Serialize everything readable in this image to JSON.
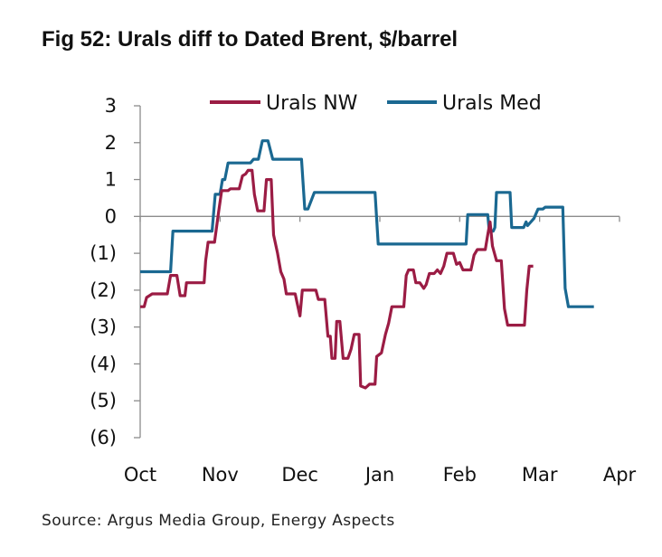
{
  "title": "Fig 52: Urals diff to Dated Brent, $/barrel",
  "source": "Source: Argus Media Group, Energy Aspects",
  "chart_data": {
    "type": "line",
    "title": "Fig 52: Urals diff to Dated Brent, $/barrel",
    "xlabel": "",
    "ylabel": "",
    "x_ticks": [
      "Oct",
      "Nov",
      "Dec",
      "Jan",
      "Feb",
      "Mar",
      "Apr"
    ],
    "y_ticks": [
      3,
      2,
      1,
      0,
      -1,
      -2,
      -3,
      -4,
      -5,
      -6
    ],
    "y_tick_labels": [
      "3",
      "2",
      "1",
      "0",
      "(1)",
      "(2)",
      "(3)",
      "(4)",
      "(5)",
      "(6)"
    ],
    "xlim": [
      0,
      6
    ],
    "ylim": [
      -6,
      3
    ],
    "grid": false,
    "legend_position": "top",
    "series": [
      {
        "name": "Urals NW",
        "color": "#9b1c44",
        "points": [
          [
            0.0,
            -2.45
          ],
          [
            0.05,
            -2.45
          ],
          [
            0.08,
            -2.2
          ],
          [
            0.15,
            -2.1
          ],
          [
            0.34,
            -2.1
          ],
          [
            0.38,
            -1.6
          ],
          [
            0.46,
            -1.6
          ],
          [
            0.5,
            -2.15
          ],
          [
            0.56,
            -2.15
          ],
          [
            0.58,
            -1.8
          ],
          [
            0.8,
            -1.8
          ],
          [
            0.82,
            -1.2
          ],
          [
            0.85,
            -0.7
          ],
          [
            0.93,
            -0.7
          ],
          [
            0.98,
            0.1
          ],
          [
            1.02,
            0.7
          ],
          [
            1.1,
            0.7
          ],
          [
            1.13,
            0.75
          ],
          [
            1.24,
            0.75
          ],
          [
            1.28,
            1.1
          ],
          [
            1.32,
            1.15
          ],
          [
            1.35,
            1.25
          ],
          [
            1.4,
            1.25
          ],
          [
            1.43,
            0.6
          ],
          [
            1.47,
            0.15
          ],
          [
            1.55,
            0.15
          ],
          [
            1.58,
            1.0
          ],
          [
            1.64,
            1.0
          ],
          [
            1.67,
            -0.5
          ],
          [
            1.72,
            -1.0
          ],
          [
            1.76,
            -1.5
          ],
          [
            1.8,
            -1.7
          ],
          [
            1.83,
            -2.1
          ],
          [
            1.94,
            -2.1
          ],
          [
            1.97,
            -2.4
          ],
          [
            2.0,
            -2.7
          ],
          [
            2.03,
            -2.0
          ],
          [
            2.2,
            -2.0
          ],
          [
            2.23,
            -2.25
          ],
          [
            2.31,
            -2.25
          ],
          [
            2.35,
            -3.25
          ],
          [
            2.38,
            -3.25
          ],
          [
            2.4,
            -3.85
          ],
          [
            2.44,
            -3.85
          ],
          [
            2.46,
            -2.85
          ],
          [
            2.5,
            -2.85
          ],
          [
            2.54,
            -3.85
          ],
          [
            2.6,
            -3.85
          ],
          [
            2.64,
            -3.6
          ],
          [
            2.68,
            -3.2
          ],
          [
            2.74,
            -3.2
          ],
          [
            2.76,
            -4.6
          ],
          [
            2.82,
            -4.65
          ],
          [
            2.87,
            -4.55
          ],
          [
            2.94,
            -4.55
          ],
          [
            2.96,
            -3.8
          ],
          [
            3.02,
            -3.7
          ],
          [
            3.07,
            -3.2
          ],
          [
            3.11,
            -2.9
          ],
          [
            3.15,
            -2.45
          ],
          [
            3.3,
            -2.45
          ],
          [
            3.33,
            -1.6
          ],
          [
            3.36,
            -1.45
          ],
          [
            3.42,
            -1.45
          ],
          [
            3.45,
            -1.8
          ],
          [
            3.5,
            -1.8
          ],
          [
            3.55,
            -1.95
          ],
          [
            3.58,
            -1.85
          ],
          [
            3.62,
            -1.55
          ],
          [
            3.68,
            -1.55
          ],
          [
            3.72,
            -1.45
          ],
          [
            3.76,
            -1.55
          ],
          [
            3.8,
            -1.35
          ],
          [
            3.84,
            -1.0
          ],
          [
            3.92,
            -1.0
          ],
          [
            3.96,
            -1.3
          ],
          [
            4.0,
            -1.25
          ],
          [
            4.04,
            -1.45
          ],
          [
            4.14,
            -1.45
          ],
          [
            4.18,
            -1.05
          ],
          [
            4.22,
            -0.9
          ],
          [
            4.32,
            -0.9
          ],
          [
            4.35,
            -0.5
          ],
          [
            4.38,
            -0.15
          ],
          [
            4.41,
            -0.8
          ],
          [
            4.46,
            -1.2
          ],
          [
            4.52,
            -1.2
          ],
          [
            4.56,
            -2.5
          ],
          [
            4.6,
            -2.95
          ],
          [
            4.81,
            -2.95
          ],
          [
            4.84,
            -2.0
          ],
          [
            4.87,
            -1.35
          ],
          [
            4.92,
            -1.35
          ]
        ]
      },
      {
        "name": "Urals Med",
        "color": "#1a6891",
        "points": [
          [
            0.0,
            -1.5
          ],
          [
            0.38,
            -1.5
          ],
          [
            0.41,
            -0.4
          ],
          [
            0.9,
            -0.4
          ],
          [
            0.94,
            0.6
          ],
          [
            1.0,
            0.6
          ],
          [
            1.03,
            1.0
          ],
          [
            1.06,
            1.0
          ],
          [
            1.1,
            1.45
          ],
          [
            1.38,
            1.45
          ],
          [
            1.42,
            1.55
          ],
          [
            1.48,
            1.55
          ],
          [
            1.53,
            2.05
          ],
          [
            1.6,
            2.05
          ],
          [
            1.66,
            1.55
          ],
          [
            2.02,
            1.55
          ],
          [
            2.06,
            0.2
          ],
          [
            2.1,
            0.2
          ],
          [
            2.18,
            0.65
          ],
          [
            2.94,
            0.65
          ],
          [
            2.98,
            -0.75
          ],
          [
            4.08,
            -0.75
          ],
          [
            4.1,
            0.05
          ],
          [
            4.35,
            0.05
          ],
          [
            4.37,
            -0.4
          ],
          [
            4.42,
            -0.4
          ],
          [
            4.44,
            -0.3
          ],
          [
            4.46,
            0.65
          ],
          [
            4.63,
            0.65
          ],
          [
            4.65,
            -0.3
          ],
          [
            4.8,
            -0.3
          ],
          [
            4.83,
            -0.15
          ],
          [
            4.85,
            -0.25
          ],
          [
            4.93,
            -0.05
          ],
          [
            4.98,
            0.2
          ],
          [
            5.04,
            0.2
          ],
          [
            5.07,
            0.25
          ],
          [
            5.29,
            0.25
          ],
          [
            5.32,
            -1.95
          ],
          [
            5.36,
            -2.45
          ],
          [
            5.68,
            -2.45
          ]
        ]
      }
    ]
  }
}
